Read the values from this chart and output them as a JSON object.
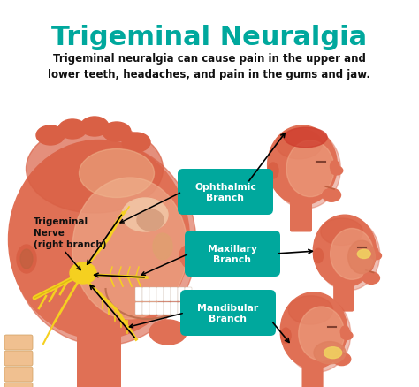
{
  "title": "Trigeminal Neuralgia",
  "subtitle": "Trigeminal neuralgia can cause pain in the upper and\nlower teeth, headaches, and pain in the gums and jaw.",
  "title_color": "#00A89D",
  "subtitle_color": "#111111",
  "background_color": "#ffffff",
  "labels": [
    "Ophthalmic\nBranch",
    "Maxillary\nBranch",
    "Mandibular\nBranch"
  ],
  "label_box_color": "#00A89D",
  "label_text_color": "#ffffff",
  "nerve_label": "Trigeminal\nNerve\n(right branch)",
  "nerve_label_color": "#111111",
  "head_color": "#E07055",
  "head_mid_color": "#D96045",
  "head_light_color": "#F0A888",
  "neck_color": "#E07055",
  "nerve_color": "#F5D020",
  "nerve_dark": "#C8A800",
  "spine_color": "#F0C090",
  "inner_face_color": "#F0B090",
  "teeth_color": "#FFFFFF",
  "jaw_color": "#E8A070",
  "highlight_top": "#D04030",
  "highlight_cheek": "#F0C060",
  "eye_color": "#C07050",
  "arrow_color": "#111111"
}
